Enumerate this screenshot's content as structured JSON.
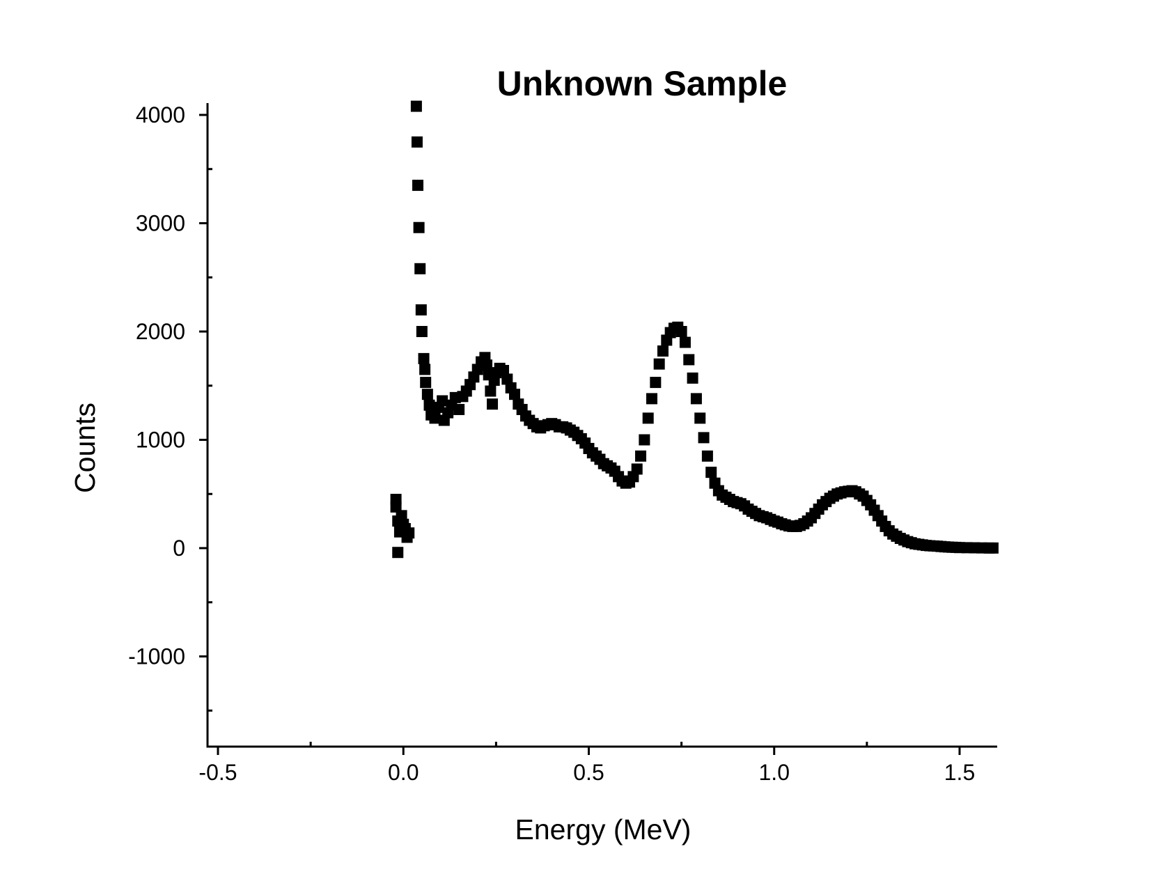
{
  "chart_data": {
    "type": "scatter",
    "title": "Unknown Sample",
    "xlabel": "Energy (MeV)",
    "ylabel": "Counts",
    "xlim": [
      -0.53,
      1.6
    ],
    "ylim": [
      -1840,
      4110
    ],
    "x_ticks": [
      -0.5,
      0.0,
      0.5,
      1.0,
      1.5
    ],
    "x_tick_labels": [
      "-0.5",
      "0.0",
      "0.5",
      "1.0",
      "1.5"
    ],
    "x_minor_ticks": [
      -0.25,
      0.25,
      0.75,
      1.25
    ],
    "y_ticks": [
      -1000,
      0,
      1000,
      2000,
      3000,
      4000
    ],
    "y_tick_labels": [
      "-1000",
      "0",
      "1000",
      "2000",
      "3000",
      "4000"
    ],
    "y_minor_ticks": [
      -1500,
      -500,
      500,
      1500,
      2500,
      3500
    ],
    "grid": false,
    "marker": "square",
    "color": "#000000",
    "series": [
      {
        "points": [
          [
            -0.02,
            450
          ],
          [
            -0.02,
            380
          ],
          [
            -0.015,
            250
          ],
          [
            -0.01,
            150
          ],
          [
            -0.015,
            -40
          ],
          [
            -0.005,
            300
          ],
          [
            0.0,
            220
          ],
          [
            0.005,
            180
          ],
          [
            0.01,
            100
          ],
          [
            0.015,
            140
          ],
          [
            0.035,
            4080
          ],
          [
            0.037,
            3750
          ],
          [
            0.039,
            3350
          ],
          [
            0.042,
            2960
          ],
          [
            0.045,
            2580
          ],
          [
            0.048,
            2200
          ],
          [
            0.05,
            2000
          ],
          [
            0.055,
            1750
          ],
          [
            0.058,
            1650
          ],
          [
            0.06,
            1530
          ],
          [
            0.065,
            1420
          ],
          [
            0.07,
            1320
          ],
          [
            0.075,
            1230
          ],
          [
            0.085,
            1200
          ],
          [
            0.095,
            1300
          ],
          [
            0.105,
            1360
          ],
          [
            0.11,
            1180
          ],
          [
            0.12,
            1250
          ],
          [
            0.13,
            1320
          ],
          [
            0.14,
            1390
          ],
          [
            0.15,
            1280
          ],
          [
            0.16,
            1400
          ],
          [
            0.17,
            1450
          ],
          [
            0.18,
            1510
          ],
          [
            0.19,
            1580
          ],
          [
            0.2,
            1650
          ],
          [
            0.21,
            1720
          ],
          [
            0.22,
            1760
          ],
          [
            0.225,
            1690
          ],
          [
            0.23,
            1600
          ],
          [
            0.235,
            1450
          ],
          [
            0.24,
            1330
          ],
          [
            0.245,
            1550
          ],
          [
            0.25,
            1620
          ],
          [
            0.26,
            1660
          ],
          [
            0.27,
            1640
          ],
          [
            0.28,
            1560
          ],
          [
            0.29,
            1480
          ],
          [
            0.3,
            1420
          ],
          [
            0.31,
            1330
          ],
          [
            0.32,
            1280
          ],
          [
            0.33,
            1220
          ],
          [
            0.34,
            1180
          ],
          [
            0.35,
            1150
          ],
          [
            0.36,
            1120
          ],
          [
            0.37,
            1110
          ],
          [
            0.38,
            1130
          ],
          [
            0.39,
            1140
          ],
          [
            0.4,
            1150
          ],
          [
            0.41,
            1140
          ],
          [
            0.42,
            1120
          ],
          [
            0.43,
            1120
          ],
          [
            0.44,
            1110
          ],
          [
            0.45,
            1090
          ],
          [
            0.46,
            1070
          ],
          [
            0.47,
            1040
          ],
          [
            0.48,
            1010
          ],
          [
            0.49,
            970
          ],
          [
            0.5,
            920
          ],
          [
            0.51,
            880
          ],
          [
            0.52,
            850
          ],
          [
            0.53,
            820
          ],
          [
            0.54,
            780
          ],
          [
            0.55,
            760
          ],
          [
            0.56,
            740
          ],
          [
            0.57,
            710
          ],
          [
            0.58,
            660
          ],
          [
            0.59,
            620
          ],
          [
            0.6,
            600
          ],
          [
            0.61,
            610
          ],
          [
            0.62,
            660
          ],
          [
            0.63,
            730
          ],
          [
            0.64,
            850
          ],
          [
            0.65,
            1000
          ],
          [
            0.66,
            1200
          ],
          [
            0.67,
            1380
          ],
          [
            0.68,
            1530
          ],
          [
            0.69,
            1700
          ],
          [
            0.7,
            1820
          ],
          [
            0.71,
            1920
          ],
          [
            0.72,
            1990
          ],
          [
            0.73,
            2030
          ],
          [
            0.74,
            2040
          ],
          [
            0.75,
            2000
          ],
          [
            0.76,
            1900
          ],
          [
            0.77,
            1740
          ],
          [
            0.78,
            1570
          ],
          [
            0.79,
            1380
          ],
          [
            0.8,
            1200
          ],
          [
            0.81,
            1020
          ],
          [
            0.82,
            850
          ],
          [
            0.83,
            700
          ],
          [
            0.84,
            600
          ],
          [
            0.85,
            530
          ],
          [
            0.86,
            490
          ],
          [
            0.87,
            470
          ],
          [
            0.88,
            450
          ],
          [
            0.89,
            430
          ],
          [
            0.9,
            420
          ],
          [
            0.91,
            410
          ],
          [
            0.92,
            390
          ],
          [
            0.93,
            360
          ],
          [
            0.94,
            340
          ],
          [
            0.95,
            320
          ],
          [
            0.96,
            300
          ],
          [
            0.97,
            290
          ],
          [
            0.98,
            280
          ],
          [
            0.99,
            265
          ],
          [
            1.0,
            250
          ],
          [
            1.01,
            240
          ],
          [
            1.02,
            225
          ],
          [
            1.03,
            215
          ],
          [
            1.04,
            205
          ],
          [
            1.05,
            200
          ],
          [
            1.06,
            200
          ],
          [
            1.07,
            210
          ],
          [
            1.08,
            225
          ],
          [
            1.09,
            250
          ],
          [
            1.1,
            280
          ],
          [
            1.11,
            320
          ],
          [
            1.12,
            360
          ],
          [
            1.13,
            400
          ],
          [
            1.14,
            430
          ],
          [
            1.15,
            460
          ],
          [
            1.16,
            480
          ],
          [
            1.17,
            500
          ],
          [
            1.18,
            510
          ],
          [
            1.19,
            520
          ],
          [
            1.2,
            525
          ],
          [
            1.21,
            530
          ],
          [
            1.22,
            520
          ],
          [
            1.23,
            500
          ],
          [
            1.24,
            480
          ],
          [
            1.25,
            440
          ],
          [
            1.26,
            400
          ],
          [
            1.27,
            350
          ],
          [
            1.28,
            300
          ],
          [
            1.29,
            250
          ],
          [
            1.3,
            200
          ],
          [
            1.31,
            160
          ],
          [
            1.32,
            130
          ],
          [
            1.33,
            110
          ],
          [
            1.34,
            90
          ],
          [
            1.35,
            75
          ],
          [
            1.36,
            60
          ],
          [
            1.37,
            50
          ],
          [
            1.38,
            40
          ],
          [
            1.39,
            35
          ],
          [
            1.4,
            30
          ],
          [
            1.41,
            25
          ],
          [
            1.42,
            22
          ],
          [
            1.43,
            20
          ],
          [
            1.44,
            18
          ],
          [
            1.45,
            15
          ],
          [
            1.46,
            12
          ],
          [
            1.47,
            10
          ],
          [
            1.48,
            8
          ],
          [
            1.49,
            7
          ],
          [
            1.5,
            5
          ],
          [
            1.52,
            4
          ],
          [
            1.54,
            3
          ],
          [
            1.56,
            2
          ],
          [
            1.58,
            1
          ],
          [
            1.59,
            1
          ]
        ]
      }
    ]
  }
}
